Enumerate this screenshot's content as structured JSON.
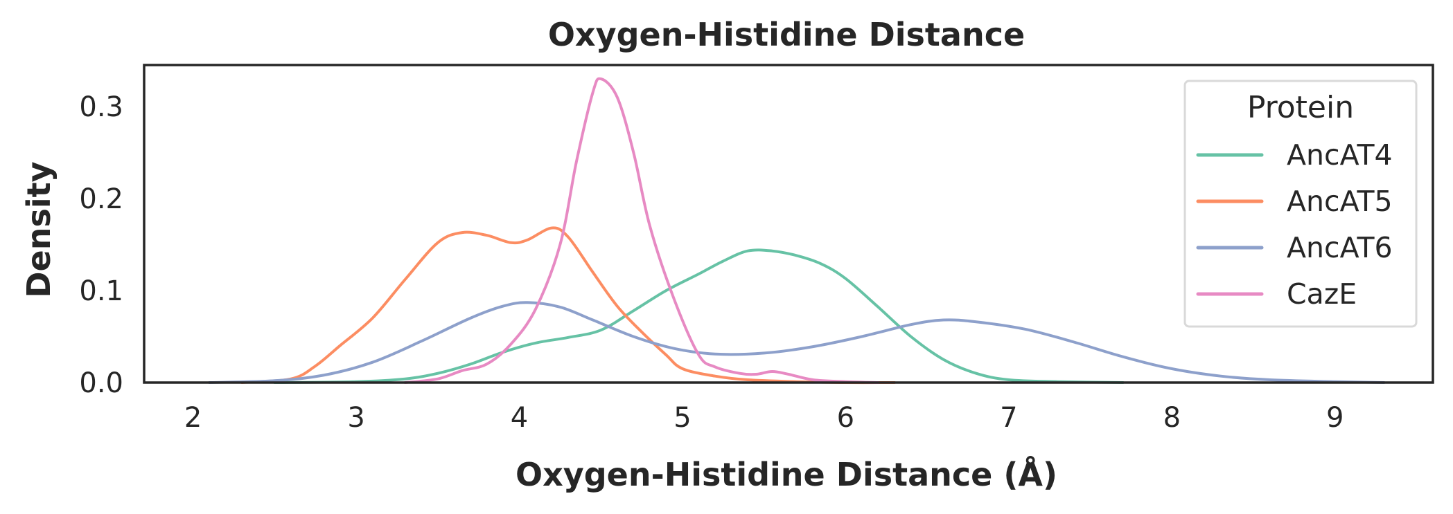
{
  "chart_data": {
    "type": "line",
    "title": "Oxygen-Histidine Distance",
    "xlabel": "Oxygen-Histidine Distance (Å)",
    "ylabel": "Density",
    "xlim": [
      1.7,
      9.6
    ],
    "ylim": [
      0,
      0.345
    ],
    "x_ticks": [
      2,
      3,
      4,
      5,
      6,
      7,
      8,
      9
    ],
    "x_tick_labels": [
      "2",
      "3",
      "4",
      "5",
      "6",
      "7",
      "8",
      "9"
    ],
    "y_ticks": [
      0.0,
      0.1,
      0.2,
      0.3
    ],
    "y_tick_labels": [
      "0.0",
      "0.1",
      "0.2",
      "0.3"
    ],
    "grid": false,
    "legend": {
      "title": "Protein",
      "position": "top-right"
    },
    "series": [
      {
        "name": "AncAT4",
        "color": "#66c2a5",
        "points": [
          [
            2.5,
            0.0
          ],
          [
            3.0,
            0.001
          ],
          [
            3.3,
            0.004
          ],
          [
            3.5,
            0.01
          ],
          [
            3.7,
            0.02
          ],
          [
            3.9,
            0.033
          ],
          [
            4.1,
            0.043
          ],
          [
            4.3,
            0.049
          ],
          [
            4.5,
            0.057
          ],
          [
            4.7,
            0.078
          ],
          [
            4.9,
            0.1
          ],
          [
            5.1,
            0.118
          ],
          [
            5.25,
            0.132
          ],
          [
            5.4,
            0.143
          ],
          [
            5.55,
            0.143
          ],
          [
            5.7,
            0.138
          ],
          [
            5.85,
            0.129
          ],
          [
            6.0,
            0.113
          ],
          [
            6.2,
            0.082
          ],
          [
            6.4,
            0.05
          ],
          [
            6.6,
            0.025
          ],
          [
            6.8,
            0.01
          ],
          [
            7.0,
            0.003
          ],
          [
            7.3,
            0.001
          ],
          [
            7.7,
            0.0
          ]
        ]
      },
      {
        "name": "AncAT5",
        "color": "#fc8d62",
        "points": [
          [
            2.3,
            0.0
          ],
          [
            2.6,
            0.004
          ],
          [
            2.75,
            0.018
          ],
          [
            2.9,
            0.04
          ],
          [
            3.1,
            0.07
          ],
          [
            3.3,
            0.112
          ],
          [
            3.5,
            0.152
          ],
          [
            3.65,
            0.163
          ],
          [
            3.8,
            0.16
          ],
          [
            3.95,
            0.152
          ],
          [
            4.05,
            0.155
          ],
          [
            4.2,
            0.168
          ],
          [
            4.3,
            0.158
          ],
          [
            4.45,
            0.12
          ],
          [
            4.6,
            0.083
          ],
          [
            4.75,
            0.055
          ],
          [
            4.9,
            0.03
          ],
          [
            5.0,
            0.015
          ],
          [
            5.2,
            0.007
          ],
          [
            5.4,
            0.003
          ],
          [
            5.7,
            0.001
          ],
          [
            6.0,
            0.0
          ],
          [
            6.3,
            0.0
          ]
        ]
      },
      {
        "name": "AncAT6",
        "color": "#8da0cb",
        "points": [
          [
            2.1,
            0.0
          ],
          [
            2.5,
            0.002
          ],
          [
            2.8,
            0.008
          ],
          [
            3.1,
            0.022
          ],
          [
            3.4,
            0.045
          ],
          [
            3.7,
            0.07
          ],
          [
            3.9,
            0.083
          ],
          [
            4.05,
            0.087
          ],
          [
            4.25,
            0.082
          ],
          [
            4.45,
            0.068
          ],
          [
            4.7,
            0.05
          ],
          [
            4.95,
            0.037
          ],
          [
            5.2,
            0.031
          ],
          [
            5.5,
            0.032
          ],
          [
            5.8,
            0.039
          ],
          [
            6.1,
            0.05
          ],
          [
            6.4,
            0.063
          ],
          [
            6.6,
            0.068
          ],
          [
            6.8,
            0.066
          ],
          [
            7.1,
            0.058
          ],
          [
            7.4,
            0.044
          ],
          [
            7.7,
            0.028
          ],
          [
            8.0,
            0.015
          ],
          [
            8.3,
            0.007
          ],
          [
            8.6,
            0.003
          ],
          [
            9.0,
            0.001
          ],
          [
            9.3,
            0.0
          ]
        ]
      },
      {
        "name": "CazE",
        "color": "#e78ac3",
        "points": [
          [
            3.3,
            0.0
          ],
          [
            3.5,
            0.004
          ],
          [
            3.65,
            0.013
          ],
          [
            3.8,
            0.02
          ],
          [
            3.95,
            0.042
          ],
          [
            4.1,
            0.08
          ],
          [
            4.25,
            0.15
          ],
          [
            4.35,
            0.24
          ],
          [
            4.45,
            0.315
          ],
          [
            4.5,
            0.33
          ],
          [
            4.6,
            0.31
          ],
          [
            4.7,
            0.25
          ],
          [
            4.8,
            0.17
          ],
          [
            4.95,
            0.09
          ],
          [
            5.1,
            0.03
          ],
          [
            5.2,
            0.017
          ],
          [
            5.35,
            0.01
          ],
          [
            5.45,
            0.009
          ],
          [
            5.55,
            0.012
          ],
          [
            5.65,
            0.009
          ],
          [
            5.8,
            0.003
          ],
          [
            6.0,
            0.001
          ],
          [
            6.2,
            0.0
          ]
        ]
      }
    ]
  }
}
